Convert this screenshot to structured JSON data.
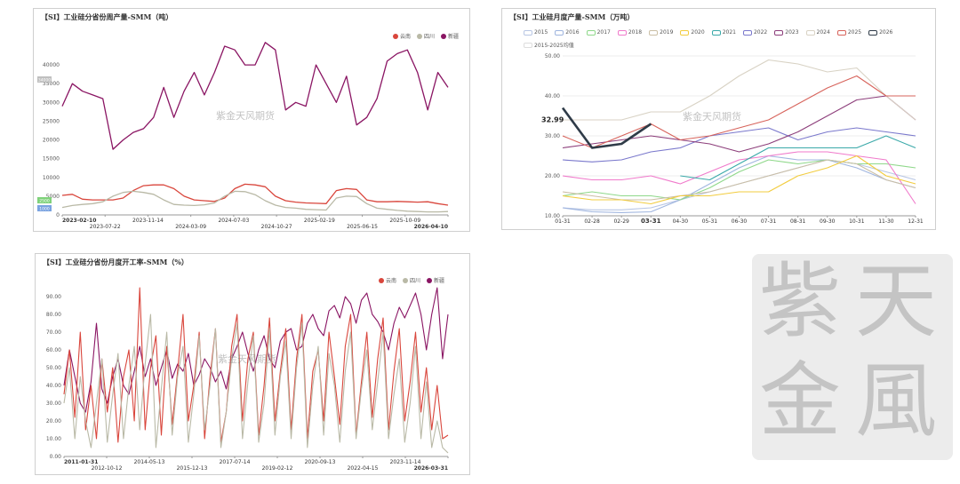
{
  "panels": [
    {
      "title": "【SI】工业硅分省份周产量-SMM（吨）",
      "legend": [
        {
          "name": "云南",
          "color": "#d9463c"
        },
        {
          "name": "四川",
          "color": "#b9b9a6"
        },
        {
          "name": "新疆",
          "color": "#8a1563"
        }
      ],
      "watermark": "紫金天风期货",
      "side_labels": [
        "34000",
        "2500",
        "1000"
      ]
    },
    {
      "title": "【SI】工业硅月度产量-SMM（万吨）",
      "legend": [
        {
          "name": "2015",
          "color": "#b8c6e4"
        },
        {
          "name": "2016",
          "color": "#9fb5df"
        },
        {
          "name": "2017",
          "color": "#8fd88a"
        },
        {
          "name": "2018",
          "color": "#f07acb"
        },
        {
          "name": "2019",
          "color": "#cbbfa6"
        },
        {
          "name": "2020",
          "color": "#f2cc3f"
        },
        {
          "name": "2021",
          "color": "#3aa9a9"
        },
        {
          "name": "2022",
          "color": "#7a78cc"
        },
        {
          "name": "2023",
          "color": "#8c3d7a"
        },
        {
          "name": "2024",
          "color": "#d8d2c4"
        },
        {
          "name": "2025",
          "color": "#d7635b"
        },
        {
          "name": "2026",
          "color": "#2f3b48"
        },
        {
          "name": "2015-2025均值",
          "color": "#dddddd"
        }
      ],
      "watermark": "紫金天风期货",
      "annotation": "32.99"
    },
    {
      "title": "【SI】工业硅分省份月度开工率-SMM（%）",
      "legend": [
        {
          "name": "云南",
          "color": "#d9463c"
        },
        {
          "name": "四川",
          "color": "#b9b9a6"
        },
        {
          "name": "新疆",
          "color": "#8a1563"
        }
      ],
      "watermark": "紫金天风期货"
    }
  ],
  "logo": {
    "text": "紫金天风",
    "chars": [
      "紫",
      "天",
      "金",
      "風"
    ]
  },
  "chart_data": [
    {
      "type": "line",
      "title": "【SI】工业硅分省份周产量-SMM（吨）",
      "ylim": [
        0,
        45000
      ],
      "yticks": [
        0,
        5000,
        10000,
        15000,
        20000,
        25000,
        30000,
        35000,
        40000
      ],
      "xticks": [
        "2023-02-10",
        "2023-07-22",
        "2023-11-14",
        "2024-03-09",
        "2024-07-03",
        "2024-10-27",
        "2025-02-19",
        "2025-06-15",
        "2025-10-09",
        "2026-04-10"
      ],
      "series": [
        {
          "name": "新疆",
          "color": "#8a1563",
          "values": [
            29000,
            35000,
            33000,
            32000,
            31000,
            17500,
            20000,
            22000,
            23000,
            26000,
            34000,
            26000,
            33000,
            38000,
            32000,
            38000,
            45000,
            44000,
            40000,
            40000,
            46000,
            44000,
            28000,
            30000,
            29000,
            40000,
            35000,
            30000,
            37000,
            24000,
            26000,
            31000,
            41000,
            43000,
            44000,
            38000,
            28000,
            38000,
            34000
          ]
        },
        {
          "name": "云南",
          "color": "#d9463c",
          "values": [
            5200,
            5500,
            4200,
            4000,
            4000,
            4000,
            4500,
            6500,
            7800,
            8000,
            8000,
            7000,
            5000,
            4000,
            3800,
            3600,
            4500,
            7000,
            8200,
            8000,
            7500,
            5000,
            3800,
            3400,
            3200,
            3100,
            3000,
            6500,
            7000,
            6800,
            4000,
            3500,
            3500,
            3600,
            3500,
            3400,
            3500,
            3000,
            2600
          ]
        },
        {
          "name": "四川",
          "color": "#b9b9a6",
          "values": [
            2000,
            2500,
            2800,
            3000,
            3500,
            5000,
            6000,
            6300,
            6000,
            5500,
            4000,
            2800,
            2600,
            2500,
            2700,
            3200,
            5000,
            6300,
            6200,
            5400,
            3800,
            2600,
            2000,
            1800,
            1500,
            1400,
            1300,
            4500,
            5000,
            4900,
            3000,
            1800,
            1500,
            1200,
            1000,
            900,
            800,
            800,
            900
          ]
        }
      ]
    },
    {
      "type": "line",
      "title": "【SI】工业硅月度产量-SMM（万吨）",
      "categories": [
        "01-31",
        "02-28",
        "02-29",
        "03-31",
        "04-30",
        "05-31",
        "06-30",
        "07-31",
        "08-31",
        "09-30",
        "10-31",
        "11-30",
        "12-31"
      ],
      "ylim": [
        10,
        50
      ],
      "yticks": [
        10,
        20,
        30,
        40,
        50
      ],
      "series": [
        {
          "name": "2015",
          "color": "#b8c6e4",
          "values": [
            12,
            11.5,
            11.5,
            12,
            14,
            16,
            18,
            20,
            22,
            24,
            23,
            21,
            19
          ]
        },
        {
          "name": "2016",
          "color": "#9fb5df",
          "values": [
            12,
            11,
            10.8,
            11,
            14,
            18,
            22,
            25,
            24,
            24,
            22,
            19,
            17
          ]
        },
        {
          "name": "2017",
          "color": "#8fd88a",
          "values": [
            15,
            16,
            15,
            15,
            14,
            17,
            21,
            24,
            23,
            24,
            23,
            23,
            22
          ]
        },
        {
          "name": "2018",
          "color": "#f07acb",
          "values": [
            20,
            19,
            19,
            20,
            18,
            21,
            24,
            25,
            26,
            26,
            25,
            24,
            13
          ]
        },
        {
          "name": "2019",
          "color": "#cbbfa6",
          "values": [
            16,
            15,
            14,
            14,
            15,
            16,
            18,
            20,
            22,
            24,
            23,
            19,
            17
          ]
        },
        {
          "name": "2020",
          "color": "#f2cc3f",
          "values": [
            15,
            14,
            14,
            13,
            15,
            15,
            16,
            16,
            20,
            22,
            25,
            20,
            18
          ]
        },
        {
          "name": "2021",
          "color": "#3aa9a9",
          "values": [
            null,
            null,
            null,
            null,
            20,
            19,
            23,
            27,
            27,
            27,
            27,
            30,
            27
          ]
        },
        {
          "name": "2022",
          "color": "#7a78cc",
          "values": [
            24,
            23.5,
            24,
            26,
            27,
            30,
            31,
            32,
            29,
            31,
            32,
            31,
            30
          ]
        },
        {
          "name": "2023",
          "color": "#8c3d7a",
          "values": [
            27,
            28,
            29,
            30,
            29,
            28,
            26,
            28,
            31,
            35,
            39,
            40,
            34
          ]
        },
        {
          "name": "2024",
          "color": "#d8d2c4",
          "values": [
            34,
            34,
            34,
            36,
            36,
            40,
            45,
            49,
            48,
            46,
            47,
            40,
            34
          ]
        },
        {
          "name": "2025",
          "color": "#d7635b",
          "values": [
            30,
            27,
            30,
            33,
            29,
            30,
            32,
            34,
            38,
            42,
            45,
            40,
            40
          ]
        },
        {
          "name": "2026",
          "color": "#2f3b48",
          "values": [
            37,
            27,
            28,
            32.99,
            null,
            null,
            null,
            null,
            null,
            null,
            null,
            null,
            null
          ]
        }
      ]
    },
    {
      "type": "line",
      "title": "【SI】工业硅分省份月度开工率-SMM（%）",
      "ylim": [
        0,
        95
      ],
      "yticks": [
        0,
        10,
        20,
        30,
        40,
        50,
        60,
        70,
        80,
        90
      ],
      "xticks": [
        "2011-01-31",
        "2012-10-12",
        "2014-05-13",
        "2015-12-13",
        "2017-07-14",
        "2019-02-12",
        "2020-09-13",
        "2022-04-15",
        "2023-11-14",
        "2026-03-31"
      ],
      "series": [
        {
          "name": "新疆",
          "color": "#8a1563",
          "values": [
            40,
            60,
            45,
            30,
            25,
            42,
            75,
            38,
            30,
            45,
            55,
            40,
            35,
            48,
            62,
            45,
            55,
            40,
            50,
            60,
            44,
            52,
            48,
            58,
            40,
            46,
            55,
            50,
            42,
            48,
            38,
            55,
            62,
            70,
            58,
            48,
            60,
            68,
            55,
            50,
            65,
            70,
            72,
            60,
            62,
            75,
            80,
            72,
            68,
            82,
            85,
            78,
            90,
            86,
            75,
            88,
            92,
            80,
            76,
            70,
            60,
            75,
            84,
            78,
            85,
            92,
            80,
            60,
            80,
            95,
            55,
            80
          ]
        },
        {
          "name": "云南",
          "color": "#d9463c",
          "values": [
            35,
            60,
            22,
            70,
            15,
            40,
            10,
            55,
            25,
            50,
            8,
            45,
            60,
            20,
            95,
            15,
            50,
            68,
            12,
            62,
            18,
            48,
            80,
            20,
            40,
            70,
            10,
            45,
            72,
            8,
            25,
            62,
            80,
            20,
            55,
            70,
            12,
            40,
            78,
            20,
            48,
            72,
            15,
            55,
            80,
            10,
            48,
            60,
            20,
            70,
            45,
            18,
            62,
            80,
            12,
            42,
            70,
            22,
            55,
            78,
            15,
            48,
            72,
            20,
            42,
            70,
            25,
            50,
            15,
            40,
            10,
            12
          ]
        },
        {
          "name": "四川",
          "color": "#b9b9a6",
          "values": [
            30,
            50,
            10,
            45,
            20,
            5,
            30,
            55,
            8,
            35,
            58,
            10,
            40,
            62,
            15,
            52,
            80,
            5,
            38,
            70,
            12,
            45,
            62,
            8,
            35,
            68,
            15,
            40,
            72,
            5,
            25,
            55,
            75,
            10,
            42,
            68,
            8,
            30,
            72,
            12,
            45,
            65,
            10,
            50,
            75,
            5,
            40,
            62,
            12,
            58,
            40,
            8,
            48,
            70,
            10,
            38,
            60,
            15,
            42,
            70,
            10,
            35,
            55,
            8,
            30,
            62,
            10,
            42,
            5,
            20,
            5,
            2
          ]
        }
      ]
    }
  ]
}
